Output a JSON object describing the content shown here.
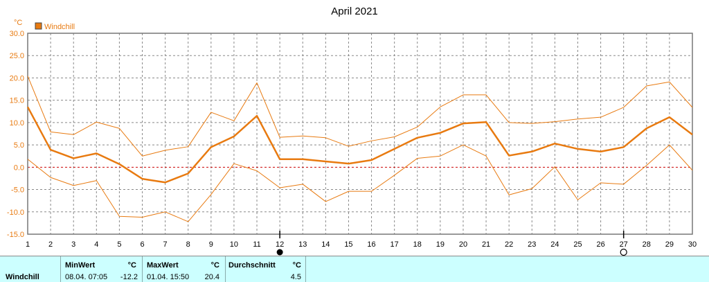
{
  "chart_data": {
    "type": "line",
    "title": "April 2021",
    "y_unit": "°C",
    "ylim": [
      -15,
      30
    ],
    "y_ticks": [
      "30.0",
      "25.0",
      "20.0",
      "15.0",
      "10.0",
      "5.0",
      "0.0",
      "-5.0",
      "-10.0",
      "-15.0"
    ],
    "x": [
      1,
      2,
      3,
      4,
      5,
      6,
      7,
      8,
      9,
      10,
      11,
      12,
      13,
      14,
      15,
      16,
      17,
      18,
      19,
      20,
      21,
      22,
      23,
      24,
      25,
      26,
      27,
      28,
      29,
      30
    ],
    "legend": [
      "Windchill"
    ],
    "grid": true,
    "series": [
      {
        "name": "Windchill",
        "role": "mean",
        "color": "#e87a10",
        "values": [
          13.5,
          3.9,
          2.0,
          3.1,
          0.7,
          -2.6,
          -3.4,
          -1.4,
          4.5,
          6.9,
          11.5,
          1.8,
          1.8,
          1.3,
          0.8,
          1.6,
          4.1,
          6.6,
          7.7,
          9.8,
          10.1,
          2.6,
          3.5,
          5.3,
          4.1,
          3.5,
          4.5,
          8.7,
          11.2,
          7.3
        ]
      },
      {
        "role": "max",
        "color": "#e87a10",
        "values": [
          20.4,
          7.9,
          7.3,
          10.1,
          8.7,
          2.5,
          3.8,
          4.6,
          12.3,
          10.4,
          18.9,
          6.7,
          7.0,
          6.6,
          4.7,
          5.9,
          6.8,
          9.0,
          13.5,
          16.2,
          16.2,
          10.0,
          9.8,
          10.2,
          10.8,
          11.2,
          13.4,
          18.2,
          19.1,
          13.4
        ]
      },
      {
        "role": "min",
        "color": "#e87a10",
        "values": [
          1.8,
          -2.3,
          -4.1,
          -3.0,
          -11.0,
          -11.2,
          -10.0,
          -12.2,
          -6.1,
          0.8,
          -0.8,
          -4.6,
          -3.8,
          -7.7,
          -5.4,
          -5.4,
          -1.8,
          2.0,
          2.5,
          5.0,
          2.5,
          -6.2,
          -4.8,
          0.1,
          -7.3,
          -3.5,
          -3.8,
          0.4,
          5.0,
          -0.7
        ]
      }
    ],
    "zero_line": {
      "value": 0,
      "style": "dashed",
      "color": "#cc0000"
    },
    "moon_markers": [
      {
        "day": 12,
        "phase": "new-moon"
      },
      {
        "day": 27,
        "phase": "full-moon"
      }
    ]
  },
  "stats": {
    "label": "Windchill",
    "min_header": "MinWert",
    "min_unit": "°C",
    "min_time": "08.04.  07:05",
    "min_value": "-12.2",
    "max_header": "MaxWert",
    "max_unit": "°C",
    "max_time": "01.04.  15:50",
    "max_value": "20.4",
    "avg_header": "Durchschnitt",
    "avg_unit": "°C",
    "avg_value": "4.5"
  }
}
